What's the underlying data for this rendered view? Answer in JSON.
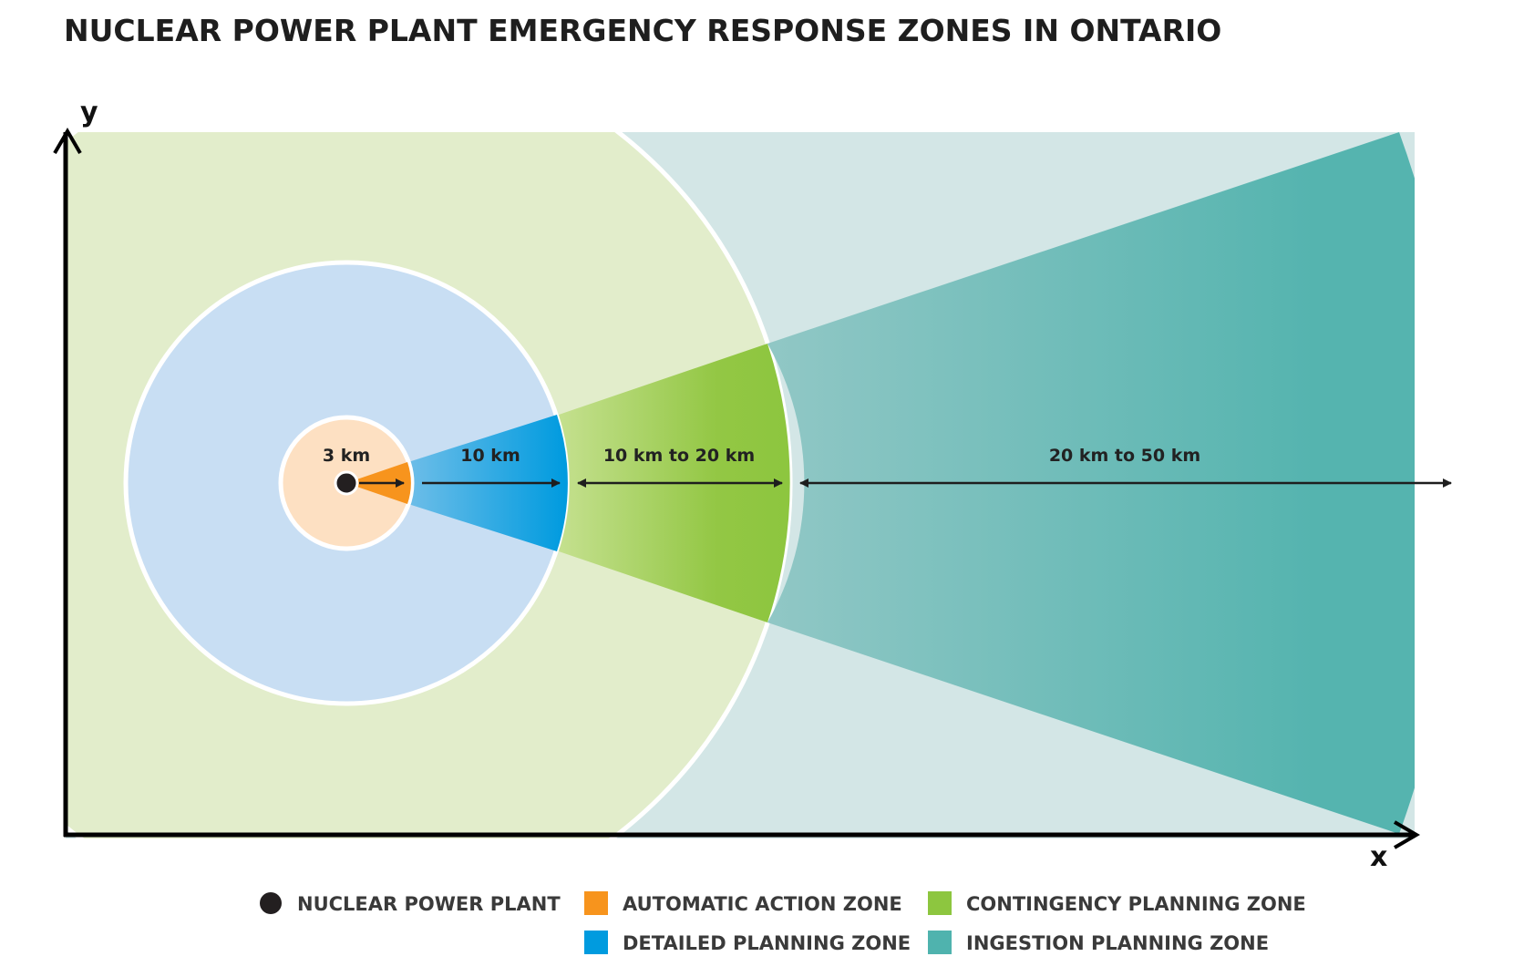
{
  "title": "NUCLEAR POWER PLANT EMERGENCY RESPONSE ZONES IN ONTARIO",
  "axes": {
    "x_label": "x",
    "y_label": "y"
  },
  "zones": [
    {
      "id": "automatic-action",
      "label": "3 km",
      "range_km": [
        0,
        3
      ]
    },
    {
      "id": "detailed-planning",
      "label": "10 km",
      "range_km": [
        3,
        10
      ]
    },
    {
      "id": "contingency-planning",
      "label": "10 km to 20 km",
      "range_km": [
        10,
        20
      ]
    },
    {
      "id": "ingestion-planning",
      "label": "20 km to 50 km",
      "range_km": [
        20,
        50
      ]
    }
  ],
  "legend": [
    {
      "label": "NUCLEAR POWER PLANT",
      "color": "#231f20",
      "shape": "circle"
    },
    {
      "label": "AUTOMATIC ACTION ZONE",
      "color": "#f7941d",
      "shape": "square"
    },
    {
      "label": "CONTINGENCY PLANNING ZONE",
      "color": "#8dc63f",
      "shape": "square"
    },
    {
      "label": "DETAILED PLANNING ZONE",
      "color": "#009bdf",
      "shape": "square"
    },
    {
      "label": "INGESTION PLANNING ZONE",
      "color": "#4fb3ae",
      "shape": "square"
    }
  ],
  "colors": {
    "automatic_light": "#fde0c2",
    "automatic_dark": "#f7941d",
    "detailed_light": "#c8def3",
    "detailed_dark": "#009bdf",
    "contingency_light": "#e2edcb",
    "contingency_dark": "#8dc63f",
    "ingestion_light": "#d3e6e6",
    "ingestion_dark": "#4fb3ae",
    "plant": "#231f20"
  }
}
